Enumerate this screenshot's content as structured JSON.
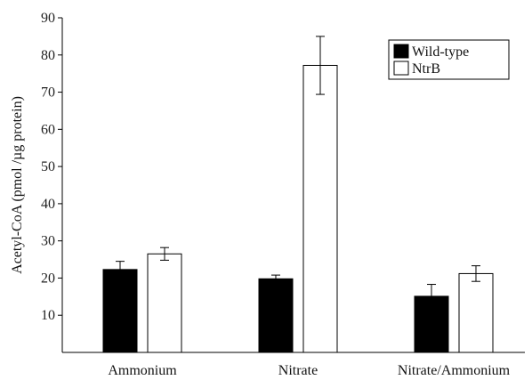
{
  "chart_data": {
    "type": "bar",
    "categories": [
      "Ammonium",
      "Nitrate",
      "Nitrate/Ammonium"
    ],
    "series": [
      {
        "name": "Wild-type",
        "values": [
          22.3,
          19.8,
          15.1
        ],
        "errors": [
          2.2,
          1.0,
          3.2
        ],
        "fill": "#000000"
      },
      {
        "name": "NtrB",
        "values": [
          26.5,
          77.2,
          21.2
        ],
        "errors": [
          1.7,
          7.8,
          2.1
        ],
        "fill": "#ffffff"
      }
    ],
    "title": "",
    "xlabel": "",
    "ylabel": "Acetyl-CoA (pmol /µg protein)",
    "ylim": [
      0,
      90
    ],
    "yticks": [
      10,
      20,
      30,
      40,
      50,
      60,
      70,
      80,
      90
    ],
    "grid": false,
    "legend_position": "top-right"
  }
}
